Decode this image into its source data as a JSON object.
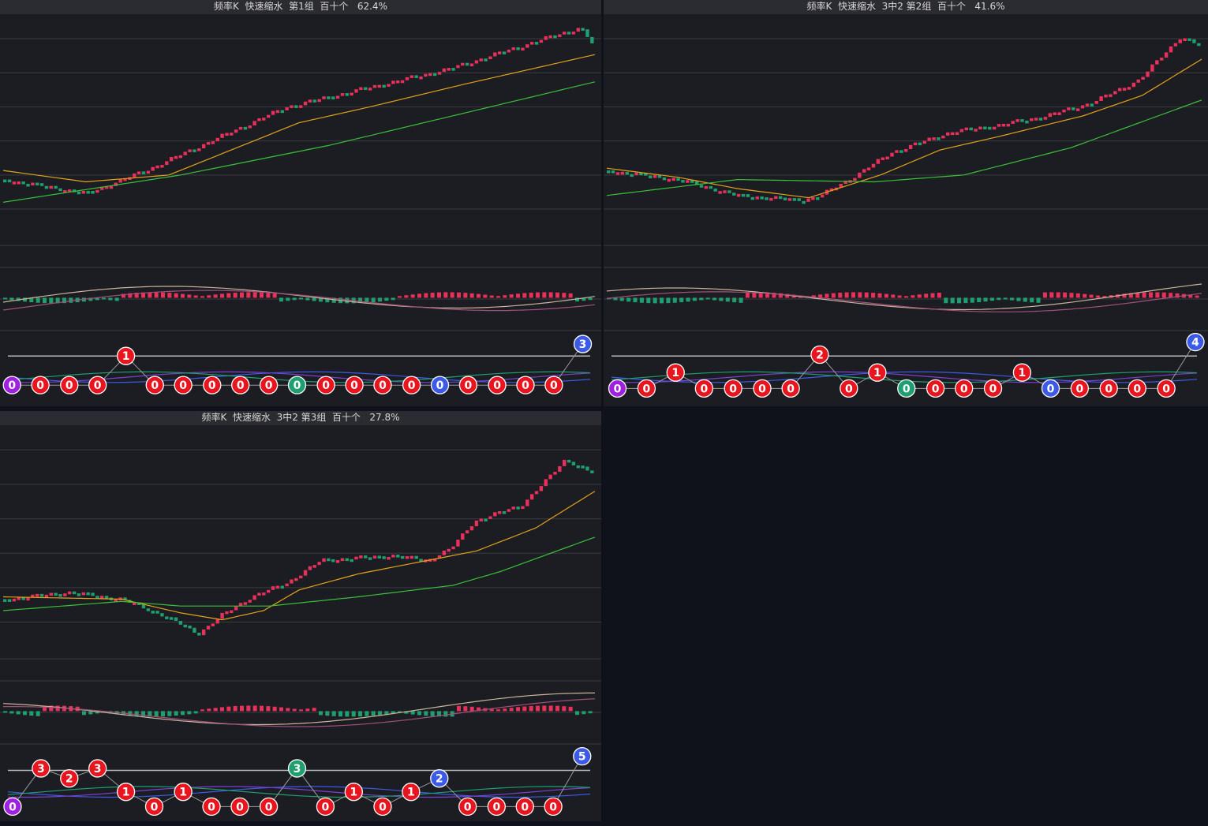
{
  "colors": {
    "panel_bg": "#1c1d22",
    "title_bg": "#2b2c31",
    "grid": "#3a3b40",
    "up": "#e8305a",
    "down": "#1f9f6f",
    "ma_fast": "#e3a21a",
    "ma_slow": "#3ac03a",
    "macd_dif": "#c9b49a",
    "macd_dea": "#a0507a",
    "badge_red": "#e8141e",
    "badge_green": "#1f9f6f",
    "badge_blue": "#3c5ae6",
    "badge_purple": "#a020e0"
  },
  "panels": [
    {
      "title": "频率K  快速缩水  第1组  百十个   62.4%",
      "chart_data": {
        "type": "candlestick",
        "trend": [
          [
            0,
            0.7
          ],
          [
            0.14,
            0.76
          ],
          [
            0.24,
            0.66
          ],
          [
            0.48,
            0.38
          ],
          [
            0.66,
            0.27
          ],
          [
            0.76,
            0.21
          ],
          [
            0.98,
            0.03
          ],
          [
            1,
            0.1
          ]
        ],
        "ma_fast": [
          [
            0,
            0.66
          ],
          [
            0.14,
            0.71
          ],
          [
            0.28,
            0.68
          ],
          [
            0.5,
            0.45
          ],
          [
            0.62,
            0.38
          ],
          [
            0.78,
            0.28
          ],
          [
            1,
            0.15
          ]
        ],
        "ma_slow": [
          [
            0,
            0.8
          ],
          [
            0.3,
            0.68
          ],
          [
            0.55,
            0.55
          ],
          [
            1,
            0.27
          ]
        ],
        "macd_hist_sign": [
          -1,
          -1,
          -1,
          -1,
          -1,
          -1,
          1,
          1,
          1,
          1,
          1,
          1,
          1,
          1,
          -1,
          -1,
          -1,
          -1,
          -1,
          -1,
          1,
          1,
          1,
          1,
          1,
          1,
          1,
          1,
          1,
          -1
        ],
        "badges": [
          {
            "label": "0",
            "color": "badge_purple",
            "x": 0.015,
            "y": 0.74
          },
          {
            "label": "0",
            "color": "badge_red",
            "x": 0.063,
            "y": 0.74
          },
          {
            "label": "0",
            "color": "badge_red",
            "x": 0.112,
            "y": 0.74
          },
          {
            "label": "0",
            "color": "badge_red",
            "x": 0.16,
            "y": 0.74
          },
          {
            "label": "1",
            "color": "badge_red",
            "x": 0.208,
            "y": 0.3
          },
          {
            "label": "0",
            "color": "badge_red",
            "x": 0.257,
            "y": 0.74
          },
          {
            "label": "0",
            "color": "badge_red",
            "x": 0.305,
            "y": 0.74
          },
          {
            "label": "0",
            "color": "badge_red",
            "x": 0.354,
            "y": 0.74
          },
          {
            "label": "0",
            "color": "badge_red",
            "x": 0.402,
            "y": 0.74
          },
          {
            "label": "0",
            "color": "badge_red",
            "x": 0.45,
            "y": 0.74
          },
          {
            "label": "0",
            "color": "badge_green",
            "x": 0.498,
            "y": 0.74
          },
          {
            "label": "0",
            "color": "badge_red",
            "x": 0.547,
            "y": 0.74
          },
          {
            "label": "0",
            "color": "badge_red",
            "x": 0.595,
            "y": 0.74
          },
          {
            "label": "0",
            "color": "badge_red",
            "x": 0.643,
            "y": 0.74
          },
          {
            "label": "0",
            "color": "badge_red",
            "x": 0.692,
            "y": 0.74
          },
          {
            "label": "0",
            "color": "badge_blue",
            "x": 0.74,
            "y": 0.74
          },
          {
            "label": "0",
            "color": "badge_red",
            "x": 0.788,
            "y": 0.74
          },
          {
            "label": "0",
            "color": "badge_red",
            "x": 0.837,
            "y": 0.74
          },
          {
            "label": "0",
            "color": "badge_red",
            "x": 0.885,
            "y": 0.74
          },
          {
            "label": "0",
            "color": "badge_red",
            "x": 0.933,
            "y": 0.74
          },
          {
            "label": "3",
            "color": "badge_blue",
            "x": 0.982,
            "y": 0.12
          }
        ]
      }
    },
    {
      "title": "频率K  快速缩水  3中2 第2组  百十个   41.6%",
      "chart_data": {
        "type": "candlestick",
        "trend": [
          [
            0,
            0.66
          ],
          [
            0.12,
            0.7
          ],
          [
            0.22,
            0.77
          ],
          [
            0.33,
            0.79
          ],
          [
            0.36,
            0.77
          ],
          [
            0.42,
            0.68
          ],
          [
            0.48,
            0.58
          ],
          [
            0.58,
            0.49
          ],
          [
            0.66,
            0.46
          ],
          [
            0.74,
            0.42
          ],
          [
            0.82,
            0.36
          ],
          [
            0.9,
            0.26
          ],
          [
            0.97,
            0.07
          ],
          [
            1,
            0.11
          ]
        ],
        "ma_fast": [
          [
            0,
            0.65
          ],
          [
            0.12,
            0.69
          ],
          [
            0.22,
            0.74
          ],
          [
            0.34,
            0.78
          ],
          [
            0.46,
            0.68
          ],
          [
            0.56,
            0.57
          ],
          [
            0.66,
            0.51
          ],
          [
            0.8,
            0.42
          ],
          [
            0.9,
            0.33
          ],
          [
            1,
            0.17
          ]
        ],
        "ma_slow": [
          [
            0,
            0.77
          ],
          [
            0.22,
            0.7
          ],
          [
            0.45,
            0.71
          ],
          [
            0.6,
            0.68
          ],
          [
            0.78,
            0.56
          ],
          [
            1,
            0.35
          ]
        ],
        "macd_hist_sign": [
          -1,
          -1,
          -1,
          -1,
          -1,
          -1,
          -1,
          1,
          1,
          1,
          1,
          1,
          1,
          1,
          1,
          1,
          1,
          -1,
          -1,
          -1,
          -1,
          -1,
          1,
          1,
          1,
          1,
          1,
          1,
          1,
          1
        ],
        "badges": [
          {
            "label": "0",
            "color": "badge_purple",
            "x": 0.018,
            "y": 0.79
          },
          {
            "label": "0",
            "color": "badge_red",
            "x": 0.067,
            "y": 0.79
          },
          {
            "label": "1",
            "color": "badge_red",
            "x": 0.116,
            "y": 0.55
          },
          {
            "label": "0",
            "color": "badge_red",
            "x": 0.164,
            "y": 0.79
          },
          {
            "label": "0",
            "color": "badge_red",
            "x": 0.213,
            "y": 0.79
          },
          {
            "label": "0",
            "color": "badge_red",
            "x": 0.262,
            "y": 0.79
          },
          {
            "label": "0",
            "color": "badge_red",
            "x": 0.31,
            "y": 0.79
          },
          {
            "label": "2",
            "color": "badge_red",
            "x": 0.359,
            "y": 0.28
          },
          {
            "label": "0",
            "color": "badge_red",
            "x": 0.408,
            "y": 0.79
          },
          {
            "label": "1",
            "color": "badge_red",
            "x": 0.456,
            "y": 0.55
          },
          {
            "label": "0",
            "color": "badge_green",
            "x": 0.505,
            "y": 0.79
          },
          {
            "label": "0",
            "color": "badge_red",
            "x": 0.554,
            "y": 0.79
          },
          {
            "label": "0",
            "color": "badge_red",
            "x": 0.602,
            "y": 0.79
          },
          {
            "label": "0",
            "color": "badge_red",
            "x": 0.651,
            "y": 0.79
          },
          {
            "label": "1",
            "color": "badge_red",
            "x": 0.7,
            "y": 0.55
          },
          {
            "label": "0",
            "color": "badge_blue",
            "x": 0.748,
            "y": 0.79
          },
          {
            "label": "0",
            "color": "badge_red",
            "x": 0.797,
            "y": 0.79
          },
          {
            "label": "0",
            "color": "badge_red",
            "x": 0.846,
            "y": 0.79
          },
          {
            "label": "0",
            "color": "badge_red",
            "x": 0.894,
            "y": 0.79
          },
          {
            "label": "0",
            "color": "badge_red",
            "x": 0.943,
            "y": 0.79
          },
          {
            "label": "4",
            "color": "badge_blue",
            "x": 0.992,
            "y": 0.09
          }
        ]
      }
    },
    {
      "title": "频率K  快速缩水  3中2 第3组  百十个   27.8%",
      "chart_data": {
        "type": "candlestick",
        "trend": [
          [
            0,
            0.73
          ],
          [
            0.11,
            0.7
          ],
          [
            0.2,
            0.73
          ],
          [
            0.27,
            0.8
          ],
          [
            0.33,
            0.88
          ],
          [
            0.37,
            0.8
          ],
          [
            0.42,
            0.72
          ],
          [
            0.48,
            0.66
          ],
          [
            0.54,
            0.56
          ],
          [
            0.6,
            0.55
          ],
          [
            0.66,
            0.54
          ],
          [
            0.72,
            0.56
          ],
          [
            0.76,
            0.51
          ],
          [
            0.8,
            0.39
          ],
          [
            0.88,
            0.32
          ],
          [
            0.92,
            0.22
          ],
          [
            0.955,
            0.12
          ],
          [
            1,
            0.18
          ]
        ],
        "ma_fast": [
          [
            0,
            0.72
          ],
          [
            0.2,
            0.73
          ],
          [
            0.3,
            0.79
          ],
          [
            0.37,
            0.82
          ],
          [
            0.44,
            0.78
          ],
          [
            0.5,
            0.69
          ],
          [
            0.6,
            0.62
          ],
          [
            0.72,
            0.56
          ],
          [
            0.8,
            0.52
          ],
          [
            0.9,
            0.42
          ],
          [
            1,
            0.26
          ]
        ],
        "ma_slow": [
          [
            0,
            0.78
          ],
          [
            0.2,
            0.74
          ],
          [
            0.3,
            0.76
          ],
          [
            0.45,
            0.76
          ],
          [
            0.6,
            0.72
          ],
          [
            0.76,
            0.67
          ],
          [
            0.84,
            0.61
          ],
          [
            1,
            0.46
          ]
        ],
        "macd_hist_sign": [
          -1,
          -1,
          1,
          1,
          -1,
          -1,
          -1,
          -1,
          -1,
          -1,
          1,
          1,
          1,
          1,
          1,
          1,
          -1,
          -1,
          -1,
          -1,
          -1,
          -1,
          -1,
          1,
          1,
          1,
          1,
          1,
          1,
          -1
        ],
        "badges": [
          {
            "label": "0",
            "color": "badge_purple",
            "x": 0.016,
            "y": 0.84
          },
          {
            "label": "3",
            "color": "badge_red",
            "x": 0.064,
            "y": 0.27
          },
          {
            "label": "2",
            "color": "badge_red",
            "x": 0.112,
            "y": 0.42
          },
          {
            "label": "3",
            "color": "badge_red",
            "x": 0.16,
            "y": 0.27
          },
          {
            "label": "1",
            "color": "badge_red",
            "x": 0.208,
            "y": 0.62
          },
          {
            "label": "0",
            "color": "badge_red",
            "x": 0.256,
            "y": 0.84
          },
          {
            "label": "1",
            "color": "badge_red",
            "x": 0.305,
            "y": 0.62
          },
          {
            "label": "0",
            "color": "badge_red",
            "x": 0.353,
            "y": 0.84
          },
          {
            "label": "0",
            "color": "badge_red",
            "x": 0.401,
            "y": 0.84
          },
          {
            "label": "0",
            "color": "badge_red",
            "x": 0.45,
            "y": 0.84
          },
          {
            "label": "3",
            "color": "badge_green",
            "x": 0.498,
            "y": 0.27
          },
          {
            "label": "0",
            "color": "badge_red",
            "x": 0.546,
            "y": 0.84
          },
          {
            "label": "1",
            "color": "badge_red",
            "x": 0.594,
            "y": 0.62
          },
          {
            "label": "0",
            "color": "badge_red",
            "x": 0.643,
            "y": 0.84
          },
          {
            "label": "1",
            "color": "badge_red",
            "x": 0.691,
            "y": 0.62
          },
          {
            "label": "2",
            "color": "badge_blue",
            "x": 0.739,
            "y": 0.42
          },
          {
            "label": "0",
            "color": "badge_red",
            "x": 0.787,
            "y": 0.84
          },
          {
            "label": "0",
            "color": "badge_red",
            "x": 0.836,
            "y": 0.84
          },
          {
            "label": "0",
            "color": "badge_red",
            "x": 0.884,
            "y": 0.84
          },
          {
            "label": "0",
            "color": "badge_red",
            "x": 0.932,
            "y": 0.84
          },
          {
            "label": "5",
            "color": "badge_blue",
            "x": 0.981,
            "y": 0.09
          }
        ]
      }
    }
  ]
}
